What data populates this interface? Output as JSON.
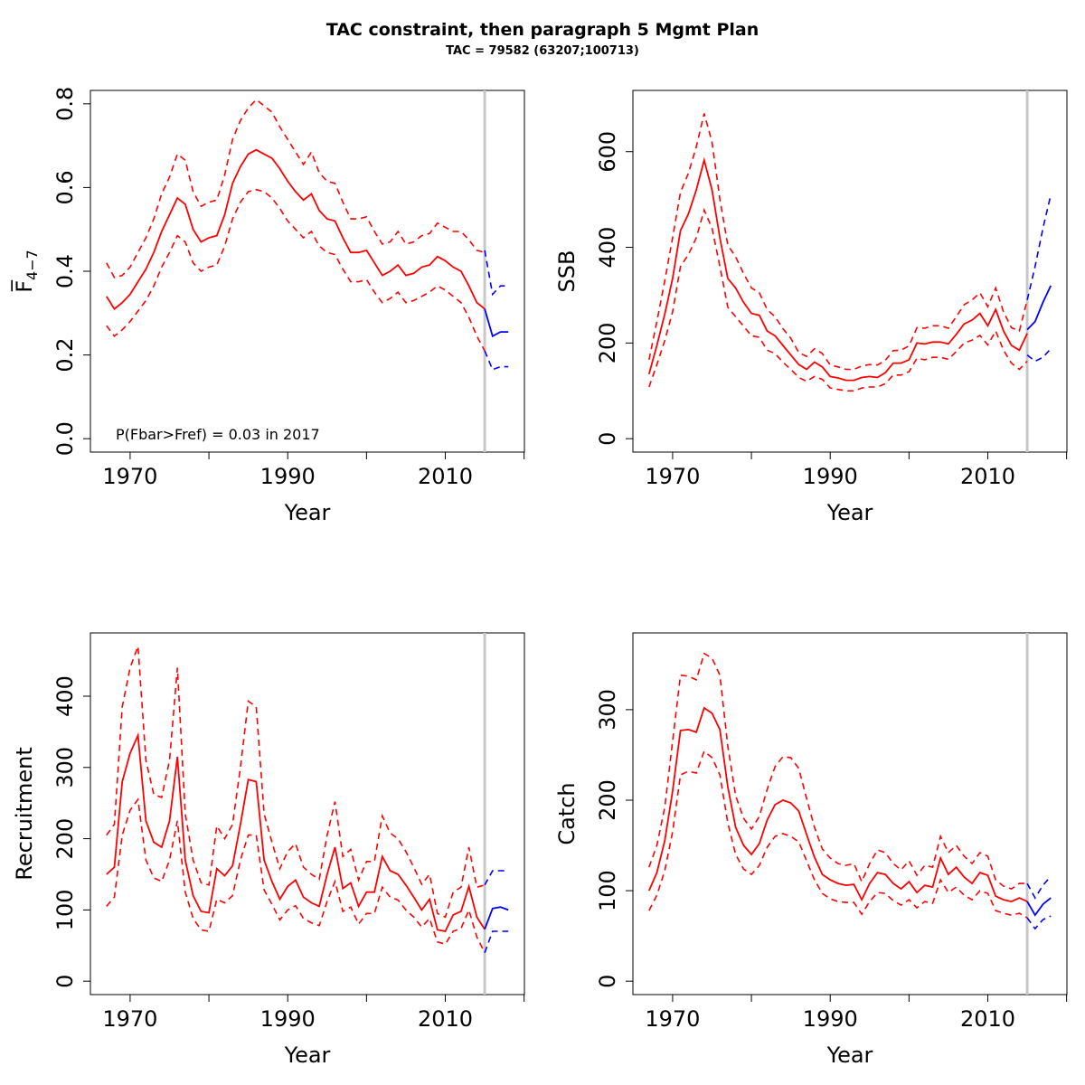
{
  "title": "TAC constraint, then paragraph 5 Mgmt Plan",
  "subtitle": "TAC = 79582 (63207;100713)",
  "colors": {
    "hist": "#ff0000",
    "proj": "#0000ff",
    "vline": "#c8c8c8"
  },
  "chart_data": [
    {
      "id": "fbar",
      "type": "line",
      "ylabel": "F̅4−7",
      "xlabel": "Year",
      "xlim": [
        1967,
        2018
      ],
      "ylim": [
        0,
        0.8
      ],
      "xticks": [
        1970,
        1990,
        2010
      ],
      "yticks": [
        0.0,
        0.2,
        0.4,
        0.6,
        0.8
      ],
      "ytick_labels": [
        "0.0",
        "0.2",
        "0.4",
        "0.6",
        "0.8"
      ],
      "vline": 2015,
      "annotation": "P(Fbar>Fref) = 0.03  in 2017",
      "series": [
        {
          "role": "historical",
          "x": [
            1967,
            1968,
            1969,
            1970,
            1971,
            1972,
            1973,
            1974,
            1975,
            1976,
            1977,
            1978,
            1979,
            1980,
            1981,
            1982,
            1983,
            1984,
            1985,
            1986,
            1987,
            1988,
            1989,
            1990,
            1991,
            1992,
            1993,
            1994,
            1995,
            1996,
            1997,
            1998,
            1999,
            2000,
            2001,
            2002,
            2003,
            2004,
            2005,
            2006,
            2007,
            2008,
            2009,
            2010,
            2011,
            2012,
            2013,
            2014,
            2015
          ],
          "mid": [
            0.34,
            0.31,
            0.325,
            0.345,
            0.375,
            0.405,
            0.445,
            0.495,
            0.535,
            0.575,
            0.56,
            0.5,
            0.47,
            0.48,
            0.485,
            0.535,
            0.61,
            0.65,
            0.68,
            0.69,
            0.68,
            0.67,
            0.645,
            0.615,
            0.59,
            0.57,
            0.585,
            0.545,
            0.525,
            0.52,
            0.48,
            0.445,
            0.445,
            0.45,
            0.42,
            0.39,
            0.4,
            0.415,
            0.39,
            0.395,
            0.41,
            0.415,
            0.435,
            0.425,
            0.41,
            0.4,
            0.365,
            0.325,
            0.31
          ],
          "lower": [
            0.27,
            0.245,
            0.26,
            0.28,
            0.305,
            0.33,
            0.365,
            0.41,
            0.445,
            0.485,
            0.47,
            0.42,
            0.4,
            0.41,
            0.415,
            0.46,
            0.525,
            0.565,
            0.59,
            0.595,
            0.59,
            0.575,
            0.55,
            0.52,
            0.5,
            0.48,
            0.495,
            0.46,
            0.445,
            0.44,
            0.405,
            0.375,
            0.375,
            0.38,
            0.35,
            0.325,
            0.335,
            0.35,
            0.325,
            0.33,
            0.34,
            0.35,
            0.365,
            0.355,
            0.34,
            0.325,
            0.29,
            0.245,
            0.21
          ],
          "upper": [
            0.42,
            0.385,
            0.39,
            0.41,
            0.445,
            0.48,
            0.525,
            0.585,
            0.625,
            0.68,
            0.665,
            0.59,
            0.555,
            0.565,
            0.57,
            0.63,
            0.715,
            0.76,
            0.79,
            0.81,
            0.795,
            0.78,
            0.745,
            0.715,
            0.685,
            0.655,
            0.685,
            0.635,
            0.615,
            0.61,
            0.565,
            0.525,
            0.525,
            0.53,
            0.495,
            0.465,
            0.47,
            0.495,
            0.465,
            0.47,
            0.485,
            0.49,
            0.515,
            0.505,
            0.495,
            0.495,
            0.475,
            0.45,
            0.445
          ]
        },
        {
          "role": "projection",
          "x": [
            2015,
            2016,
            2017,
            2018
          ],
          "mid": [
            0.31,
            0.245,
            0.255,
            0.255
          ],
          "lower": [
            0.21,
            0.165,
            0.172,
            0.172
          ],
          "upper": [
            0.45,
            0.345,
            0.365,
            0.365
          ]
        }
      ]
    },
    {
      "id": "ssb",
      "type": "line",
      "ylabel": "SSB",
      "xlabel": "Year",
      "xlim": [
        1967,
        2018
      ],
      "ylim": [
        0,
        700
      ],
      "xticks": [
        1970,
        1990,
        2010
      ],
      "yticks": [
        0,
        200,
        400,
        600
      ],
      "ytick_labels": [
        "0",
        "200",
        "400",
        "600"
      ],
      "vline": 2015,
      "annotation": "",
      "series": [
        {
          "role": "historical",
          "x": [
            1967,
            1968,
            1969,
            1970,
            1971,
            1972,
            1973,
            1974,
            1975,
            1976,
            1977,
            1978,
            1979,
            1980,
            1981,
            1982,
            1983,
            1984,
            1985,
            1986,
            1987,
            1988,
            1989,
            1990,
            1991,
            1992,
            1993,
            1994,
            1995,
            1996,
            1997,
            1998,
            1999,
            2000,
            2001,
            2002,
            2003,
            2004,
            2005,
            2006,
            2007,
            2008,
            2009,
            2010,
            2011,
            2012,
            2013,
            2014,
            2015
          ],
          "mid": [
            135,
            195,
            260,
            335,
            435,
            470,
            520,
            582,
            520,
            420,
            335,
            315,
            285,
            262,
            258,
            225,
            215,
            195,
            175,
            155,
            145,
            160,
            150,
            130,
            127,
            122,
            122,
            128,
            130,
            128,
            138,
            158,
            158,
            165,
            200,
            198,
            202,
            202,
            198,
            218,
            240,
            248,
            262,
            236,
            270,
            225,
            195,
            185,
            220
          ],
          "lower": [
            108,
            155,
            205,
            265,
            360,
            385,
            420,
            478,
            440,
            360,
            275,
            255,
            235,
            215,
            212,
            185,
            178,
            160,
            145,
            128,
            120,
            130,
            124,
            106,
            103,
            100,
            100,
            106,
            108,
            108,
            115,
            133,
            133,
            140,
            168,
            165,
            170,
            170,
            166,
            182,
            200,
            206,
            216,
            196,
            225,
            185,
            158,
            145,
            162
          ],
          "upper": [
            165,
            245,
            330,
            420,
            515,
            555,
            610,
            680,
            620,
            500,
            405,
            380,
            345,
            315,
            305,
            270,
            255,
            230,
            210,
            180,
            172,
            188,
            178,
            154,
            150,
            145,
            145,
            152,
            155,
            154,
            164,
            184,
            185,
            194,
            232,
            231,
            236,
            236,
            231,
            255,
            280,
            290,
            305,
            276,
            315,
            265,
            232,
            225,
            290
          ]
        },
        {
          "role": "projection",
          "x": [
            2015,
            2016,
            2017,
            2018
          ],
          "mid": [
            228,
            245,
            285,
            320
          ],
          "lower": [
            175,
            162,
            170,
            188
          ],
          "upper": [
            290,
            360,
            440,
            510
          ]
        }
      ]
    },
    {
      "id": "recruitment",
      "type": "line",
      "ylabel": "Recruitment",
      "xlabel": "Year",
      "xlim": [
        1967,
        2018
      ],
      "ylim": [
        0,
        470
      ],
      "xticks": [
        1970,
        1990,
        2010
      ],
      "yticks": [
        0,
        100,
        200,
        300,
        400
      ],
      "ytick_labels": [
        "0",
        "100",
        "200",
        "300",
        "400"
      ],
      "vline": 2015,
      "annotation": "",
      "series": [
        {
          "role": "historical",
          "x": [
            1967,
            1968,
            1969,
            1970,
            1971,
            1972,
            1973,
            1974,
            1975,
            1976,
            1977,
            1978,
            1979,
            1980,
            1981,
            1982,
            1983,
            1984,
            1985,
            1986,
            1987,
            1988,
            1989,
            1990,
            1991,
            1992,
            1993,
            1994,
            1995,
            1996,
            1997,
            1998,
            1999,
            2000,
            2001,
            2002,
            2003,
            2004,
            2005,
            2006,
            2007,
            2008,
            2009,
            2010,
            2011,
            2012,
            2013,
            2014,
            2015
          ],
          "mid": [
            150,
            160,
            280,
            320,
            345,
            225,
            195,
            188,
            225,
            315,
            170,
            120,
            98,
            96,
            158,
            148,
            162,
            220,
            283,
            280,
            170,
            140,
            115,
            133,
            142,
            118,
            110,
            105,
            150,
            188,
            130,
            138,
            105,
            125,
            125,
            175,
            155,
            150,
            135,
            118,
            100,
            115,
            72,
            70,
            93,
            98,
            133,
            90,
            73
          ],
          "lower": [
            105,
            118,
            205,
            240,
            255,
            170,
            145,
            140,
            170,
            225,
            125,
            88,
            72,
            70,
            115,
            110,
            120,
            170,
            205,
            205,
            128,
            108,
            86,
            100,
            106,
            88,
            82,
            78,
            112,
            140,
            98,
            104,
            80,
            95,
            95,
            132,
            118,
            114,
            100,
            90,
            76,
            88,
            55,
            52,
            70,
            74,
            100,
            62,
            40
          ],
          "upper": [
            205,
            220,
            385,
            440,
            470,
            310,
            262,
            258,
            310,
            440,
            235,
            170,
            138,
            135,
            218,
            200,
            220,
            300,
            393,
            385,
            235,
            195,
            158,
            182,
            193,
            160,
            150,
            143,
            205,
            252,
            175,
            185,
            142,
            168,
            168,
            232,
            208,
            200,
            182,
            160,
            136,
            150,
            95,
            90,
            125,
            132,
            188,
            132,
            135
          ]
        },
        {
          "role": "projection",
          "x": [
            2015,
            2016,
            2017,
            2018
          ],
          "mid": [
            73,
            102,
            104,
            100
          ],
          "lower": [
            40,
            70,
            70,
            70
          ],
          "upper": [
            135,
            155,
            155,
            155
          ]
        }
      ]
    },
    {
      "id": "catch",
      "type": "line",
      "ylabel": "Catch",
      "xlabel": "Year",
      "xlim": [
        1967,
        2018
      ],
      "ylim": [
        0,
        370
      ],
      "xticks": [
        1970,
        1990,
        2010
      ],
      "yticks": [
        0,
        100,
        200,
        300
      ],
      "ytick_labels": [
        "0",
        "100",
        "200",
        "300"
      ],
      "vline": 2015,
      "annotation": "",
      "series": [
        {
          "role": "historical",
          "x": [
            1967,
            1968,
            1969,
            1970,
            1971,
            1972,
            1973,
            1974,
            1975,
            1976,
            1977,
            1978,
            1979,
            1980,
            1981,
            1982,
            1983,
            1984,
            1985,
            1986,
            1987,
            1988,
            1989,
            1990,
            1991,
            1992,
            1993,
            1994,
            1995,
            1996,
            1997,
            1998,
            1999,
            2000,
            2001,
            2002,
            2003,
            2004,
            2005,
            2006,
            2007,
            2008,
            2009,
            2010,
            2011,
            2012,
            2013,
            2014,
            2015
          ],
          "mid": [
            100,
            120,
            155,
            210,
            277,
            278,
            275,
            302,
            296,
            278,
            215,
            170,
            150,
            140,
            152,
            178,
            195,
            200,
            197,
            188,
            162,
            137,
            118,
            112,
            108,
            106,
            107,
            90,
            108,
            120,
            118,
            108,
            102,
            110,
            98,
            106,
            104,
            136,
            118,
            126,
            115,
            108,
            120,
            117,
            94,
            90,
            88,
            92,
            88
          ],
          "lower": [
            78,
            95,
            122,
            165,
            228,
            232,
            230,
            254,
            247,
            228,
            175,
            140,
            124,
            118,
            128,
            148,
            160,
            163,
            160,
            154,
            133,
            112,
            97,
            91,
            88,
            87,
            87,
            74,
            88,
            98,
            97,
            89,
            84,
            90,
            81,
            88,
            86,
            112,
            98,
            104,
            95,
            90,
            100,
            97,
            78,
            75,
            73,
            75,
            70
          ],
          "upper": [
            126,
            150,
            192,
            265,
            338,
            337,
            333,
            362,
            357,
            338,
            260,
            205,
            180,
            168,
            182,
            212,
            237,
            248,
            247,
            235,
            202,
            170,
            146,
            136,
            130,
            128,
            130,
            110,
            130,
            145,
            142,
            130,
            123,
            133,
            117,
            128,
            126,
            160,
            142,
            150,
            138,
            130,
            142,
            138,
            112,
            105,
            102,
            108,
            108
          ]
        },
        {
          "role": "projection",
          "x": [
            2015,
            2016,
            2017,
            2018
          ],
          "mid": [
            88,
            73,
            85,
            92
          ],
          "lower": [
            70,
            58,
            68,
            72
          ],
          "upper": [
            108,
            92,
            106,
            116
          ]
        }
      ]
    }
  ]
}
